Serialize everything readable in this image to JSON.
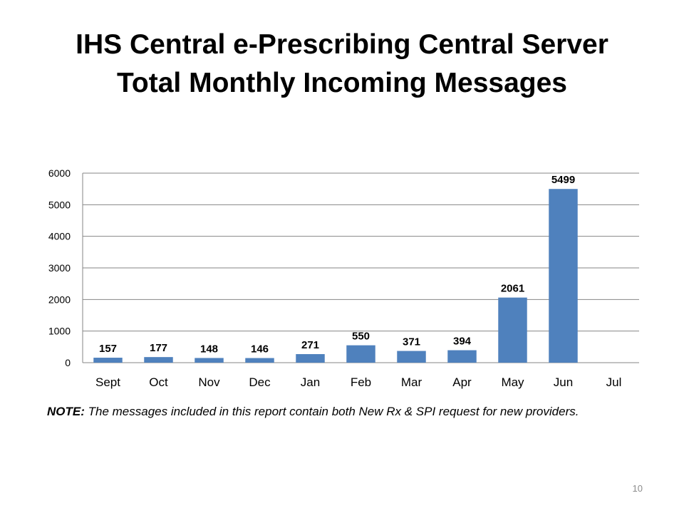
{
  "slide": {
    "title_line1": "IHS Central e-Prescribing Central Server",
    "title_line2": "Total Monthly Incoming Messages",
    "note_label": "NOTE:",
    "note_text": " The messages included in this report contain both New Rx & SPI request for new providers.",
    "page_number": "10"
  },
  "chart_data": {
    "type": "bar",
    "title": "IHS Central e-Prescribing Central Server Total Monthly Incoming Messages",
    "xlabel": "",
    "ylabel": "",
    "categories": [
      "Sept",
      "Oct",
      "Nov",
      "Dec",
      "Jan",
      "Feb",
      "Mar",
      "Apr",
      "May",
      "Jun",
      "Jul"
    ],
    "values": [
      157,
      177,
      148,
      146,
      271,
      550,
      371,
      394,
      2061,
      5499,
      null
    ],
    "data_labels": [
      "157",
      "177",
      "148",
      "146",
      "271",
      "550",
      "371",
      "394",
      "2061",
      "5499",
      ""
    ],
    "ylim": [
      0,
      6000
    ],
    "yticks": [
      0,
      1000,
      2000,
      3000,
      4000,
      5000,
      6000
    ],
    "ytick_labels": [
      "0",
      "1000",
      "2000",
      "3000",
      "4000",
      "5000",
      "6000"
    ],
    "grid": true,
    "bar_color": "#4f81bd"
  }
}
